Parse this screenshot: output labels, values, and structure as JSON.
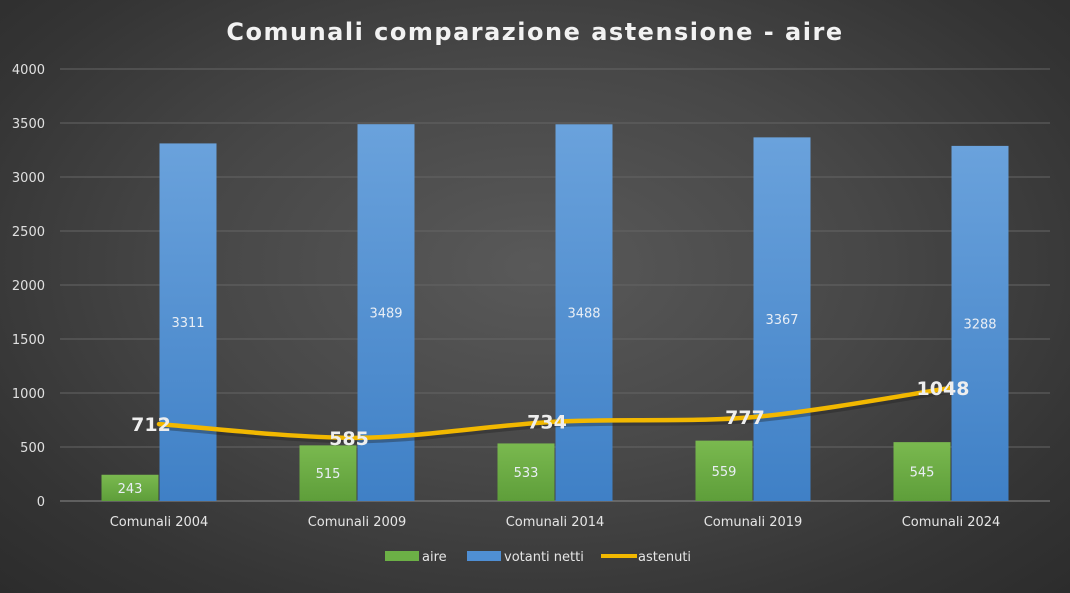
{
  "chart_data": {
    "type": "bar",
    "title": "Comunali comparazione astensione - aire",
    "categories": [
      "Comunali 2004",
      "Comunali 2009",
      "Comunali 2014",
      "Comunali 2019",
      "Comunali 2024"
    ],
    "series": [
      {
        "name": "aire",
        "type": "bar",
        "color": "#6cb046",
        "values": [
          243,
          515,
          533,
          559,
          545
        ]
      },
      {
        "name": "votanti netti",
        "type": "bar",
        "color": "#4f8fd4",
        "values": [
          3311,
          3489,
          3488,
          3367,
          3288
        ]
      },
      {
        "name": "astenuti",
        "type": "line",
        "color": "#f2b800",
        "values": [
          712,
          585,
          734,
          777,
          1048
        ]
      }
    ],
    "yticks": [
      "0",
      "500",
      "1000",
      "1500",
      "2000",
      "2500",
      "3000",
      "3500",
      "4000"
    ],
    "ylim": [
      0,
      4000
    ],
    "grid": true,
    "legend_position": "bottom"
  }
}
